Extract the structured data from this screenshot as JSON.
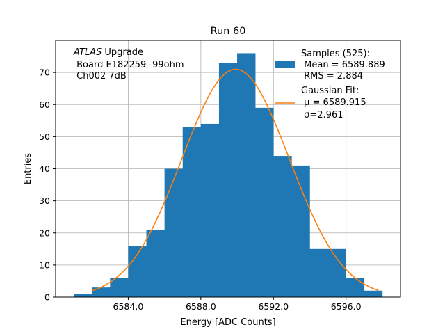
{
  "chart_data": {
    "type": "bar",
    "title": "Run 60",
    "xlabel": "Energy [ADC Counts]",
    "ylabel": "Entries",
    "xlim": [
      6580.0,
      6599.0
    ],
    "ylim": [
      0,
      80
    ],
    "grid": true,
    "legend_placement": "top-right",
    "xticks": [
      6584.0,
      6588.0,
      6592.0,
      6596.0
    ],
    "xtick_labels": [
      "6584.0",
      "6588.0",
      "6592.0",
      "6596.0"
    ],
    "yticks": [
      0,
      10,
      20,
      30,
      40,
      50,
      60,
      70
    ],
    "ytick_labels": [
      "0",
      "10",
      "20",
      "30",
      "40",
      "50",
      "60",
      "70"
    ],
    "annotation": {
      "line1_italic": "ATLAS",
      "line1_rest": " Upgrade",
      "line2": " Board E182259 -99ohm",
      "line3": " Ch002 7dB"
    },
    "histogram": {
      "name_lines": [
        "Samples (525):",
        " Mean = 6589.889",
        " RMS = 2.884"
      ],
      "color": "#1f77b4",
      "bin_edges": [
        6581.0,
        6582.0,
        6583.0,
        6584.0,
        6585.0,
        6586.0,
        6587.0,
        6588.0,
        6589.0,
        6590.0,
        6591.0,
        6592.0,
        6593.0,
        6594.0,
        6595.0,
        6596.0,
        6597.0,
        6598.0
      ],
      "counts": [
        1,
        3,
        6,
        16,
        21,
        40,
        53,
        54,
        73,
        76,
        59,
        44,
        41,
        15,
        15,
        6,
        2
      ]
    },
    "fit": {
      "name_lines": [
        "Gaussian Fit:",
        " μ = 6589.915",
        " σ=2.961"
      ],
      "color": "#ff7f0e",
      "mu": 6589.915,
      "sigma": 2.961,
      "amplitude": 71,
      "x_range": [
        6582.0,
        6597.8
      ]
    }
  }
}
